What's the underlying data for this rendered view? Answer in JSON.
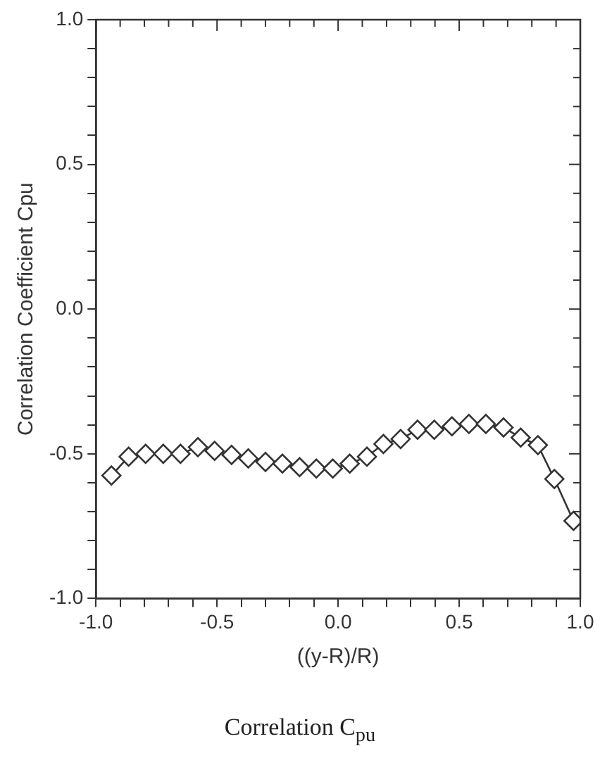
{
  "chart_data": {
    "type": "line",
    "xlabel": "((y-R)/R)",
    "ylabel": "Correlation Coefficient Cpu",
    "annotations": [
      "Correlation C$_{pu}$"
    ],
    "x": [
      -0.936,
      -0.865,
      -0.795,
      -0.722,
      -0.651,
      -0.579,
      -0.51,
      -0.44,
      -0.371,
      -0.3,
      -0.23,
      -0.159,
      -0.09,
      -0.022,
      0.048,
      0.119,
      0.187,
      0.258,
      0.328,
      0.397,
      0.47,
      0.54,
      0.61,
      0.683,
      0.754,
      0.825,
      0.893,
      0.972
    ],
    "series": [
      {
        "color": "#333333",
        "values": [
          -0.575,
          -0.51,
          -0.5,
          -0.5,
          -0.5,
          -0.477,
          -0.49,
          -0.504,
          -0.516,
          -0.528,
          -0.534,
          -0.546,
          -0.551,
          -0.551,
          -0.534,
          -0.51,
          -0.466,
          -0.449,
          -0.417,
          -0.417,
          -0.405,
          -0.397,
          -0.397,
          -0.409,
          -0.444,
          -0.47,
          -0.587,
          -0.732
        ]
      }
    ],
    "marker": "diamond",
    "line_style": "solid",
    "legend": false,
    "xlim": [
      -1.0,
      1.0
    ],
    "xticks": [
      {
        "value": -1.0,
        "label": "-1.0"
      },
      {
        "value": -0.9,
        "label": null
      },
      {
        "value": -0.8,
        "label": null
      },
      {
        "value": -0.7,
        "label": null
      },
      {
        "value": -0.6,
        "label": null
      },
      {
        "value": -0.5,
        "label": "-0.5"
      },
      {
        "value": -0.4,
        "label": null
      },
      {
        "value": -0.3,
        "label": null
      },
      {
        "value": -0.2,
        "label": null
      },
      {
        "value": -0.1,
        "label": null
      },
      {
        "value": 0.0,
        "label": "0.0"
      },
      {
        "value": 0.1,
        "label": null
      },
      {
        "value": 0.2,
        "label": null
      },
      {
        "value": 0.3,
        "label": null
      },
      {
        "value": 0.4,
        "label": null
      },
      {
        "value": 0.5,
        "label": "0.5"
      },
      {
        "value": 0.6,
        "label": null
      },
      {
        "value": 0.7,
        "label": null
      },
      {
        "value": 0.8,
        "label": null
      },
      {
        "value": 0.9,
        "label": null
      },
      {
        "value": 1.0,
        "label": "1.0"
      }
    ],
    "ylim": [
      -1.0,
      1.0
    ],
    "yticks": [
      {
        "value": -1.0,
        "label": "-1.0"
      },
      {
        "value": -0.9,
        "label": null
      },
      {
        "value": -0.8,
        "label": null
      },
      {
        "value": -0.7,
        "label": null
      },
      {
        "value": -0.6,
        "label": null
      },
      {
        "value": -0.5,
        "label": "-0.5"
      },
      {
        "value": -0.4,
        "label": null
      },
      {
        "value": -0.3,
        "label": null
      },
      {
        "value": -0.2,
        "label": null
      },
      {
        "value": -0.1,
        "label": null
      },
      {
        "value": 0.0,
        "label": "0.0"
      },
      {
        "value": 0.1,
        "label": null
      },
      {
        "value": 0.2,
        "label": null
      },
      {
        "value": 0.3,
        "label": null
      },
      {
        "value": 0.4,
        "label": null
      },
      {
        "value": 0.5,
        "label": "0.5"
      },
      {
        "value": 0.6,
        "label": null
      },
      {
        "value": 0.7,
        "label": null
      },
      {
        "value": 0.8,
        "label": null
      },
      {
        "value": 0.9,
        "label": null
      },
      {
        "value": 1.0,
        "label": "1.0"
      }
    ]
  }
}
